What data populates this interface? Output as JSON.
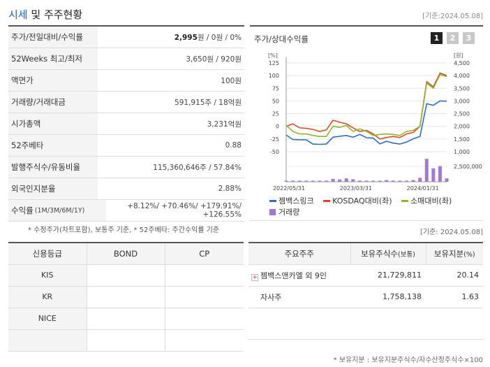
{
  "header": {
    "title_a": "시세",
    "title_b": " 및 주주현황",
    "date": "[기준:2024.05.08]"
  },
  "quote": {
    "rows": [
      {
        "label": "주가/전일대비/수익률",
        "value_bold": "2,995",
        "value_rest": "원 / 0원 / 0%"
      },
      {
        "label": "52Weeks 최고/최저",
        "value_bold": "",
        "value_rest": "3,650원 / 920원"
      },
      {
        "label": "액면가",
        "value_bold": "",
        "value_rest": "100원"
      },
      {
        "label": "거래량/거래대금",
        "value_bold": "",
        "value_rest": "591,915주 / 18억원"
      },
      {
        "label": "시가총액",
        "value_bold": "",
        "value_rest": "3,231억원"
      },
      {
        "label": "52주베타",
        "value_bold": "",
        "value_rest": "0.88"
      },
      {
        "label": "발행주식수/유동비율",
        "value_bold": "",
        "value_rest": "115,360,646주 / 57.84%"
      },
      {
        "label": "외국인지분율",
        "value_bold": "",
        "value_rest": "2.88%"
      }
    ],
    "return_label": "수익률",
    "return_period": "(1M/3M/6M/1Y)",
    "return_values": "+8.12%/ +70.46%/ +179.91%/ +126.55%",
    "note": "* 수정주가(차트포함), 보통주 기준, * 52주베타: 주간수익률 기준"
  },
  "chart_panel": {
    "title": "주가/상대수익률",
    "pages": [
      "1",
      "2",
      "3"
    ],
    "note": "[기준: 2024.05.08]"
  },
  "chart_data": {
    "type": "line",
    "left_unit": "[%]",
    "right_unit": "[원]",
    "left_ticks": [
      "125",
      "100",
      "75",
      "50",
      "25",
      "0",
      "-25",
      "-50"
    ],
    "right_ticks": [
      "4,500",
      "4,000",
      "3,500",
      "3,000",
      "2,500",
      "2,000",
      "1,500",
      "1,000"
    ],
    "volume_tick": "2,500,000",
    "x_labels": [
      "2022/05/31",
      "2023/03/31",
      "2024/01/31"
    ],
    "x_label_idx": [
      0,
      10,
      20
    ],
    "ylim_left": [
      -50,
      125
    ],
    "ylim_right": [
      1000,
      4500
    ],
    "series": [
      {
        "name": "젬백스링크",
        "color": "#2f6ec4",
        "axis": "right",
        "values": [
          1660,
          1480,
          1470,
          1470,
          1300,
          1290,
          1300,
          1570,
          1610,
          1640,
          1570,
          1680,
          1550,
          1540,
          1310,
          1410,
          1340,
          1300,
          1380,
          1510,
          1600,
          2890,
          2830,
          3000,
          2990
        ]
      },
      {
        "name": "KOSDAQ대비(좌)",
        "color": "#d94a26",
        "axis": "left",
        "values": [
          0,
          5,
          -3,
          -4,
          -6,
          -10,
          -7,
          12,
          8,
          5,
          -3,
          -10,
          -8,
          -15,
          -25,
          -22,
          -20,
          -22,
          -15,
          -12,
          0,
          88,
          78,
          105,
          100
        ]
      },
      {
        "name": "소매대비(좌)",
        "color": "#8fb62b",
        "axis": "left",
        "values": [
          2,
          -10,
          -15,
          -15,
          -18,
          -20,
          -20,
          0,
          -2,
          2,
          -10,
          -5,
          -10,
          -18,
          -16,
          -15,
          -16,
          -18,
          -10,
          -8,
          0,
          85,
          75,
          102,
          98
        ]
      }
    ],
    "volume": {
      "name": "거래량",
      "color": "#a07ad1",
      "values": [
        120000,
        110000,
        100000,
        90000,
        150000,
        100000,
        90000,
        500000,
        400000,
        600000,
        450000,
        200000,
        150000,
        100000,
        120000,
        300000,
        200000,
        180000,
        140000,
        300000,
        700000,
        4100000,
        2400000,
        2800000,
        600000
      ],
      "max": 5000000
    }
  },
  "credit": {
    "headers": [
      "신용등급",
      "BOND",
      "CP"
    ],
    "rows": [
      {
        "agency": "KIS",
        "bond": "",
        "cp": ""
      },
      {
        "agency": "KR",
        "bond": "",
        "cp": ""
      },
      {
        "agency": "NICE",
        "bond": "",
        "cp": ""
      },
      {
        "agency": "",
        "bond": "",
        "cp": ""
      }
    ]
  },
  "holders": {
    "headers": [
      "주요주주",
      "보유주식수",
      "(보통)",
      "보유지분",
      "(%)"
    ],
    "rows": [
      {
        "name": "젬백스앤카엘 외 9인",
        "shares": "21,729,811",
        "ratio": "20.14",
        "expandable": true
      },
      {
        "name": "자사주",
        "shares": "1,758,138",
        "ratio": "1.63",
        "expandable": false
      }
    ],
    "note": "* 보유지분 : 보유지분주식수/자수산정주식수×100"
  }
}
